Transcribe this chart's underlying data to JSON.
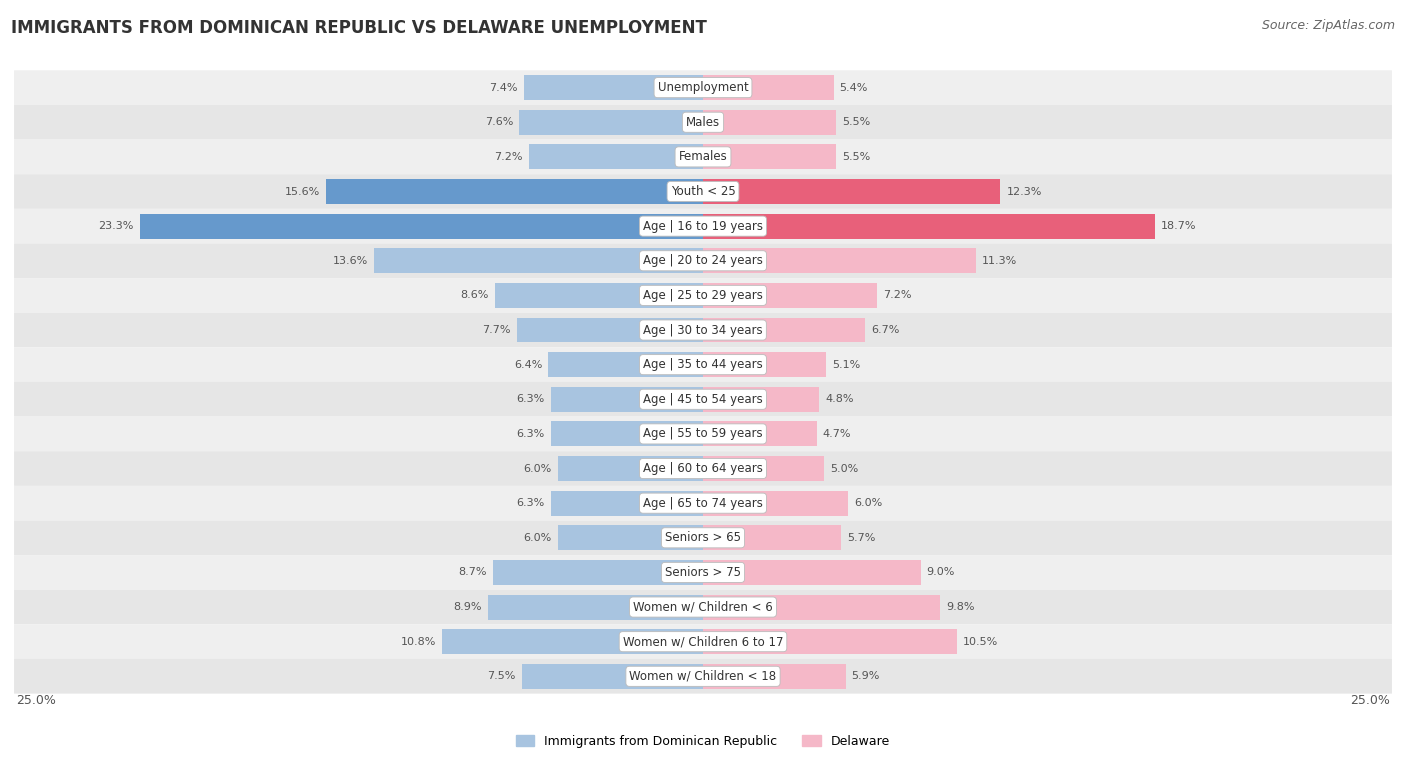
{
  "title": "IMMIGRANTS FROM DOMINICAN REPUBLIC VS DELAWARE UNEMPLOYMENT",
  "source": "Source: ZipAtlas.com",
  "categories": [
    "Unemployment",
    "Males",
    "Females",
    "Youth < 25",
    "Age | 16 to 19 years",
    "Age | 20 to 24 years",
    "Age | 25 to 29 years",
    "Age | 30 to 34 years",
    "Age | 35 to 44 years",
    "Age | 45 to 54 years",
    "Age | 55 to 59 years",
    "Age | 60 to 64 years",
    "Age | 65 to 74 years",
    "Seniors > 65",
    "Seniors > 75",
    "Women w/ Children < 6",
    "Women w/ Children 6 to 17",
    "Women w/ Children < 18"
  ],
  "left_values": [
    7.4,
    7.6,
    7.2,
    15.6,
    23.3,
    13.6,
    8.6,
    7.7,
    6.4,
    6.3,
    6.3,
    6.0,
    6.3,
    6.0,
    8.7,
    8.9,
    10.8,
    7.5
  ],
  "right_values": [
    5.4,
    5.5,
    5.5,
    12.3,
    18.7,
    11.3,
    7.2,
    6.7,
    5.1,
    4.8,
    4.7,
    5.0,
    6.0,
    5.7,
    9.0,
    9.8,
    10.5,
    5.9
  ],
  "left_color_normal": "#a8c4e0",
  "right_color_normal": "#f5b8c8",
  "left_color_highlight": "#6699cc",
  "right_color_highlight": "#e8607a",
  "highlight_rows": [
    3,
    4
  ],
  "left_label": "Immigrants from Dominican Republic",
  "right_label": "Delaware",
  "axis_max": 25.0,
  "row_colors": [
    "#efefef",
    "#e6e6e6"
  ],
  "title_fontsize": 12,
  "source_fontsize": 9,
  "label_fontsize": 8.5,
  "value_fontsize": 8
}
